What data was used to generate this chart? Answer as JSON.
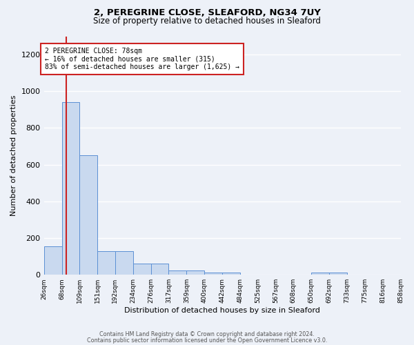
{
  "title_line1": "2, PEREGRINE CLOSE, SLEAFORD, NG34 7UY",
  "title_line2": "Size of property relative to detached houses in Sleaford",
  "xlabel": "Distribution of detached houses by size in Sleaford",
  "ylabel": "Number of detached properties",
  "footer_line1": "Contains HM Land Registry data © Crown copyright and database right 2024.",
  "footer_line2": "Contains public sector information licensed under the Open Government Licence v3.0.",
  "bin_edges": [
    26,
    68,
    109,
    151,
    192,
    234,
    276,
    317,
    359,
    400,
    442,
    484,
    525,
    567,
    608,
    650,
    692,
    733,
    775,
    816,
    858
  ],
  "bar_heights": [
    155,
    940,
    650,
    130,
    130,
    60,
    60,
    25,
    25,
    12,
    12,
    0,
    0,
    0,
    0,
    12,
    12,
    0,
    0,
    0
  ],
  "bar_color": "#c9d9ef",
  "bar_edgecolor": "#5b8fd4",
  "property_size": 78,
  "vline_color": "#cc2222",
  "annotation_text": "2 PEREGRINE CLOSE: 78sqm\n← 16% of detached houses are smaller (315)\n83% of semi-detached houses are larger (1,625) →",
  "annotation_box_color": "white",
  "annotation_box_edgecolor": "#cc2222",
  "ylim_max": 1300,
  "yticks": [
    0,
    200,
    400,
    600,
    800,
    1000,
    1200
  ],
  "bg_color": "#edf1f8",
  "grid_color": "white"
}
